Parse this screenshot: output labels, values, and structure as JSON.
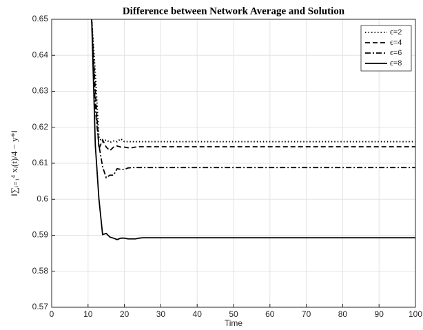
{
  "chart_data": {
    "type": "line",
    "title": "Difference between Network Average and Solution",
    "x_label": "Time",
    "y_label": "‖∑ᵢ₌₁⁴ xᵢ(t)/4 − y*‖",
    "x": [
      10,
      11,
      12,
      13,
      14,
      15,
      16,
      17,
      18,
      19,
      20,
      21,
      22,
      23,
      24,
      25,
      30,
      40,
      50,
      60,
      70,
      80,
      90,
      100
    ],
    "series": [
      {
        "name": "ϵ=2",
        "color": "#000000",
        "linestyle": "dotted",
        "values": [
          0.7,
          0.65,
          0.635,
          0.617,
          0.616,
          0.6165,
          0.6158,
          0.6162,
          0.616,
          0.6168,
          0.616,
          0.616,
          0.616,
          0.616,
          0.616,
          0.616,
          0.616,
          0.616,
          0.616,
          0.616,
          0.616,
          0.616,
          0.616,
          0.616
        ]
      },
      {
        "name": "ϵ=4",
        "color": "#000000",
        "linestyle": "dashed",
        "values": [
          0.7,
          0.65,
          0.63,
          0.614,
          0.6165,
          0.6145,
          0.6135,
          0.6145,
          0.6148,
          0.6145,
          0.6145,
          0.6143,
          0.6143,
          0.6145,
          0.6146,
          0.6146,
          0.6146,
          0.6146,
          0.6146,
          0.6146,
          0.6146,
          0.6146,
          0.6146,
          0.6146
        ]
      },
      {
        "name": "ϵ=6",
        "color": "#000000",
        "linestyle": "dashdot",
        "values": [
          0.7,
          0.65,
          0.625,
          0.615,
          0.609,
          0.606,
          0.6067,
          0.6067,
          0.6085,
          0.6083,
          0.6083,
          0.6087,
          0.6088,
          0.6088,
          0.6088,
          0.6088,
          0.6088,
          0.6088,
          0.6088,
          0.6088,
          0.6088,
          0.6088,
          0.6088,
          0.6088
        ]
      },
      {
        "name": "ϵ=8",
        "color": "#000000",
        "linestyle": "solid",
        "values": [
          0.7,
          0.65,
          0.615,
          0.6,
          0.5902,
          0.5905,
          0.5895,
          0.5892,
          0.5888,
          0.5892,
          0.5892,
          0.589,
          0.589,
          0.589,
          0.5892,
          0.5893,
          0.5893,
          0.5893,
          0.5893,
          0.5893,
          0.5893,
          0.5893,
          0.5893,
          0.5893
        ]
      }
    ],
    "xlim": [
      0,
      100
    ],
    "xticks": [
      0,
      10,
      20,
      30,
      40,
      50,
      60,
      70,
      80,
      90,
      100
    ],
    "ylim": [
      0.57,
      0.65
    ],
    "yticks": [
      0.57,
      0.58,
      0.59,
      0.6,
      0.61,
      0.62,
      0.63,
      0.64,
      0.65
    ],
    "grid": true,
    "legend": "top-right"
  }
}
